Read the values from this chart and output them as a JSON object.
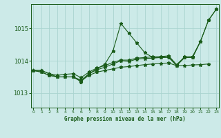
{
  "title": "Graphe pression niveau de la mer (hPa)",
  "bg_color": "#cceae8",
  "grid_color": "#aad4d0",
  "line_color": "#1a5c1a",
  "x_labels": [
    0,
    1,
    2,
    3,
    4,
    5,
    6,
    7,
    8,
    9,
    10,
    11,
    12,
    13,
    14,
    15,
    16,
    17,
    18,
    19,
    20,
    21,
    22,
    23
  ],
  "ylim": [
    1012.55,
    1015.75
  ],
  "yticks": [
    1013,
    1014,
    1015
  ],
  "series": {
    "spiky": [
      1013.7,
      1013.7,
      1013.6,
      1013.5,
      1013.5,
      1013.5,
      1013.35,
      1013.6,
      1013.75,
      1013.9,
      1014.3,
      1015.15,
      1014.85,
      1014.55,
      1014.25,
      1014.1,
      1014.1,
      1014.15,
      1013.85,
      1014.1,
      1014.1,
      1014.6,
      1015.25,
      1015.6
    ],
    "smooth_low": [
      1013.7,
      1013.65,
      1013.55,
      1013.5,
      1013.5,
      1013.5,
      1013.38,
      1013.55,
      1013.65,
      1013.7,
      1013.75,
      1013.8,
      1013.82,
      1013.85,
      1013.88,
      1013.9,
      1013.92,
      1013.93,
      1013.85,
      1013.85,
      1013.87,
      1013.88,
      1013.9,
      null
    ],
    "mid": [
      1013.7,
      1013.65,
      1013.55,
      1013.5,
      1013.5,
      1013.5,
      1013.4,
      1013.6,
      1013.72,
      1013.8,
      1013.9,
      1014.0,
      1013.98,
      1014.05,
      1014.07,
      1014.08,
      1014.1,
      1014.1,
      1013.85,
      1014.1,
      1014.1,
      1014.6,
      null,
      null
    ],
    "trend": [
      1013.7,
      1013.7,
      1013.6,
      1013.55,
      1013.58,
      1013.6,
      1013.48,
      1013.65,
      1013.78,
      1013.85,
      1013.95,
      1014.02,
      1014.02,
      1014.08,
      1014.1,
      1014.12,
      1014.13,
      1014.15,
      1013.88,
      1014.12,
      1014.13,
      1014.6,
      1015.25,
      1015.6
    ]
  }
}
